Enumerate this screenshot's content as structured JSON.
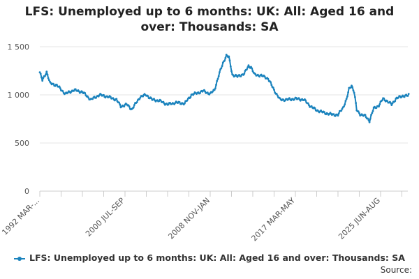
{
  "chart_data": {
    "type": "line",
    "title_lines": [
      "LFS: Unemployed up to 6 months: UK: All: Aged 16 and",
      "over: Thousands: SA"
    ],
    "source_label": "Source:",
    "xlabel": "",
    "ylabel": "",
    "ylim": [
      0,
      1500
    ],
    "yticks": [
      0,
      500,
      1000,
      1500
    ],
    "ytick_labels": [
      "0",
      "500",
      "1 000",
      "1 500"
    ],
    "x_tick_labels": [
      {
        "label": "1992 MAR-...",
        "period": 0
      },
      {
        "label": "2000 JUL-SEP",
        "period": 100
      },
      {
        "label": "2008 NOV-JAN",
        "period": 200
      },
      {
        "label": "2017 MAR-MAY",
        "period": 300
      },
      {
        "label": "2025 JUN-AUG",
        "period": 400
      }
    ],
    "grid": true,
    "legend_position": "bottom",
    "color": "#1b83bd",
    "series": [
      {
        "name": "LFS: Unemployed up to 6 months: UK: All: Aged 16 and over: Thousands: SA",
        "anchors": [
          [
            0,
            1235
          ],
          [
            3,
            1150
          ],
          [
            8,
            1240
          ],
          [
            12,
            1120
          ],
          [
            20,
            1100
          ],
          [
            30,
            1010
          ],
          [
            40,
            1050
          ],
          [
            50,
            1030
          ],
          [
            60,
            950
          ],
          [
            70,
            1000
          ],
          [
            80,
            980
          ],
          [
            90,
            950
          ],
          [
            95,
            880
          ],
          [
            102,
            900
          ],
          [
            108,
            850
          ],
          [
            118,
            980
          ],
          [
            125,
            1000
          ],
          [
            132,
            950
          ],
          [
            140,
            940
          ],
          [
            150,
            900
          ],
          [
            160,
            920
          ],
          [
            170,
            910
          ],
          [
            178,
            1000
          ],
          [
            185,
            1020
          ],
          [
            192,
            1040
          ],
          [
            200,
            1010
          ],
          [
            205,
            1050
          ],
          [
            210,
            1200
          ],
          [
            215,
            1330
          ],
          [
            219,
            1410
          ],
          [
            222,
            1390
          ],
          [
            226,
            1210
          ],
          [
            232,
            1190
          ],
          [
            240,
            1220
          ],
          [
            245,
            1300
          ],
          [
            248,
            1290
          ],
          [
            252,
            1210
          ],
          [
            260,
            1200
          ],
          [
            268,
            1170
          ],
          [
            275,
            1050
          ],
          [
            282,
            950
          ],
          [
            290,
            950
          ],
          [
            300,
            960
          ],
          [
            310,
            950
          ],
          [
            318,
            880
          ],
          [
            325,
            840
          ],
          [
            332,
            820
          ],
          [
            340,
            800
          ],
          [
            350,
            790
          ],
          [
            356,
            870
          ],
          [
            360,
            950
          ],
          [
            363,
            1060
          ],
          [
            366,
            1100
          ],
          [
            369,
            1030
          ],
          [
            372,
            840
          ],
          [
            376,
            800
          ],
          [
            382,
            780
          ],
          [
            387,
            730
          ],
          [
            392,
            860
          ],
          [
            398,
            890
          ],
          [
            403,
            960
          ],
          [
            407,
            940
          ],
          [
            413,
            900
          ],
          [
            418,
            960
          ],
          [
            426,
            990
          ],
          [
            432,
            990
          ],
          [
            433,
            1010
          ]
        ]
      }
    ]
  }
}
